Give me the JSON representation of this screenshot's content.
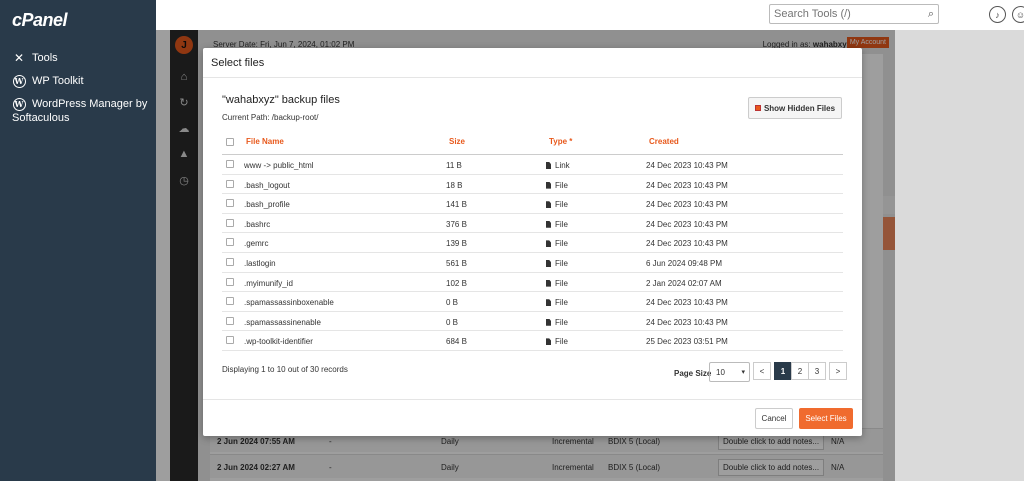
{
  "cpanel": {
    "logo": "cPanel",
    "nav": [
      {
        "label": "Tools",
        "icon": "tools-icon"
      },
      {
        "label": "WP Toolkit",
        "icon": "wordpress-icon"
      },
      {
        "label": "WordPress Manager by Softaculous",
        "icon": "wordpress-icon"
      }
    ],
    "search_placeholder": "Search Tools (/)"
  },
  "plugin": {
    "server_date": "Server Date: Fri, Jun 7, 2024, 01:02 PM",
    "logged_in_prefix": "Logged in as:",
    "logged_in_user": "wahabxyz",
    "my_account": "My Account",
    "bg_rows": [
      {
        "date": "2 Jun 2024 07:55 AM",
        "dash": "-",
        "freq": "Daily",
        "type": "Incremental",
        "storage": "BDIX 5 (Local)",
        "note": "Double click to add notes...",
        "na": "N/A"
      },
      {
        "date": "2 Jun 2024 02:27 AM",
        "dash": "-",
        "freq": "Daily",
        "type": "Incremental",
        "storage": "BDIX 5 (Local)",
        "note": "Double click to add notes...",
        "na": "N/A"
      }
    ]
  },
  "modal": {
    "title": "Select files",
    "backup_title": "\"wahabxyz\" backup files",
    "current_path": "Current Path: /backup-root/",
    "show_hidden": "Show Hidden Files",
    "columns": {
      "name": "File Name",
      "size": "Size",
      "type": "Type *",
      "created": "Created"
    },
    "files": [
      {
        "name": "www -> public_html",
        "size": "11 B",
        "type": "Link",
        "created": "24 Dec 2023 10:43 PM"
      },
      {
        "name": ".bash_logout",
        "size": "18 B",
        "type": "File",
        "created": "24 Dec 2023 10:43 PM"
      },
      {
        "name": ".bash_profile",
        "size": "141 B",
        "type": "File",
        "created": "24 Dec 2023 10:43 PM"
      },
      {
        "name": ".bashrc",
        "size": "376 B",
        "type": "File",
        "created": "24 Dec 2023 10:43 PM"
      },
      {
        "name": ".gemrc",
        "size": "139 B",
        "type": "File",
        "created": "24 Dec 2023 10:43 PM"
      },
      {
        "name": ".lastlogin",
        "size": "561 B",
        "type": "File",
        "created": "6 Jun 2024 09:48 PM"
      },
      {
        "name": ".myimunify_id",
        "size": "102 B",
        "type": "File",
        "created": "2 Jan 2024 02:07 AM"
      },
      {
        "name": ".spamassassinboxenable",
        "size": "0 B",
        "type": "File",
        "created": "24 Dec 2023 10:43 PM"
      },
      {
        "name": ".spamassassinenable",
        "size": "0 B",
        "type": "File",
        "created": "24 Dec 2023 10:43 PM"
      },
      {
        "name": ".wp-toolkit-identifier",
        "size": "684 B",
        "type": "File",
        "created": "25 Dec 2023 03:51 PM"
      }
    ],
    "displaying": "Displaying 1 to 10 out of 30 records",
    "page_size_label": "Page Size",
    "page_size_value": "10",
    "pager": {
      "prev": "<",
      "pages": [
        "1",
        "2",
        "3"
      ],
      "next": ">",
      "active": "1"
    },
    "cancel": "Cancel",
    "select": "Select Files"
  },
  "colors": {
    "accent": "#e8591c",
    "sidebar": "#293a4a"
  }
}
